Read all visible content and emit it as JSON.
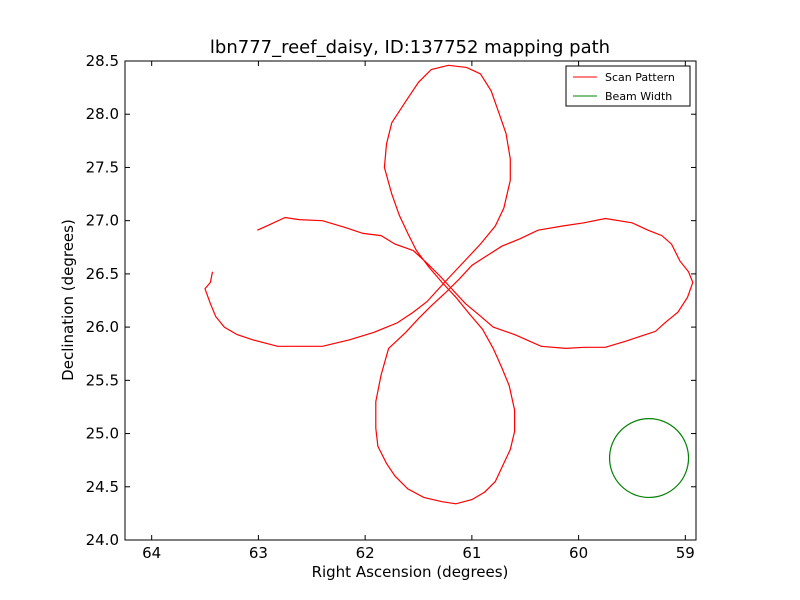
{
  "chart_data": {
    "type": "line",
    "title": "lbn777_reef_daisy, ID:137752 mapping path",
    "xlabel": "Right Ascension (degrees)",
    "ylabel": "Declination (degrees)",
    "xlim": [
      64.25,
      58.9
    ],
    "ylim": [
      24.0,
      28.5
    ],
    "x_inverted": true,
    "xticks": [
      64,
      63,
      62,
      61,
      60,
      59
    ],
    "xtick_labels": [
      "64",
      "63",
      "62",
      "61",
      "60",
      "59"
    ],
    "yticks": [
      24.0,
      24.5,
      25.0,
      25.5,
      26.0,
      26.5,
      27.0,
      27.5,
      28.0,
      28.5
    ],
    "ytick_labels": [
      "24.0",
      "24.5",
      "25.0",
      "25.5",
      "26.0",
      "26.5",
      "27.0",
      "27.5",
      "28.0",
      "28.5"
    ],
    "grid": false,
    "legend_position": "top-right",
    "series": [
      {
        "name": "Scan Pattern",
        "color": "#ff0000",
        "points": [
          [
            63.01,
            26.91
          ],
          [
            62.9,
            26.96
          ],
          [
            62.75,
            27.03
          ],
          [
            62.62,
            27.01
          ],
          [
            62.4,
            27.0
          ],
          [
            62.2,
            26.94
          ],
          [
            62.02,
            26.88
          ],
          [
            61.85,
            26.86
          ],
          [
            61.72,
            26.78
          ],
          [
            61.55,
            26.72
          ],
          [
            61.42,
            26.6
          ],
          [
            61.3,
            26.48
          ],
          [
            61.18,
            26.35
          ],
          [
            61.06,
            26.22
          ],
          [
            60.94,
            26.12
          ],
          [
            60.8,
            26.0
          ],
          [
            60.6,
            25.93
          ],
          [
            60.35,
            25.82
          ],
          [
            60.12,
            25.8
          ],
          [
            59.95,
            25.81
          ],
          [
            59.75,
            25.81
          ],
          [
            59.55,
            25.87
          ],
          [
            59.4,
            25.92
          ],
          [
            59.28,
            25.96
          ],
          [
            59.18,
            26.05
          ],
          [
            59.07,
            26.14
          ],
          [
            58.98,
            26.28
          ],
          [
            58.93,
            26.42
          ],
          [
            58.97,
            26.52
          ],
          [
            59.05,
            26.62
          ],
          [
            59.13,
            26.78
          ],
          [
            59.22,
            26.86
          ],
          [
            59.35,
            26.91
          ],
          [
            59.5,
            26.98
          ],
          [
            59.75,
            27.02
          ],
          [
            59.95,
            26.98
          ],
          [
            60.15,
            26.95
          ],
          [
            60.38,
            26.91
          ],
          [
            60.55,
            26.83
          ],
          [
            60.72,
            26.76
          ],
          [
            60.86,
            26.67
          ],
          [
            61.0,
            26.58
          ],
          [
            61.12,
            26.45
          ],
          [
            61.25,
            26.32
          ],
          [
            61.38,
            26.2
          ],
          [
            61.5,
            26.08
          ],
          [
            61.62,
            25.95
          ],
          [
            61.78,
            25.8
          ],
          [
            61.85,
            25.55
          ],
          [
            61.9,
            25.3
          ],
          [
            61.9,
            25.05
          ],
          [
            61.88,
            24.88
          ],
          [
            61.8,
            24.72
          ],
          [
            61.72,
            24.6
          ],
          [
            61.6,
            24.48
          ],
          [
            61.45,
            24.4
          ],
          [
            61.28,
            24.36
          ],
          [
            61.15,
            24.34
          ],
          [
            61.0,
            24.38
          ],
          [
            60.88,
            24.45
          ],
          [
            60.78,
            24.55
          ],
          [
            60.72,
            24.68
          ],
          [
            60.64,
            24.85
          ],
          [
            60.6,
            25.02
          ],
          [
            60.6,
            25.22
          ],
          [
            60.65,
            25.45
          ],
          [
            60.72,
            25.62
          ],
          [
            60.8,
            25.8
          ],
          [
            60.9,
            25.98
          ],
          [
            61.02,
            26.12
          ],
          [
            61.15,
            26.28
          ],
          [
            61.28,
            26.42
          ],
          [
            61.4,
            26.56
          ],
          [
            61.52,
            26.72
          ],
          [
            61.6,
            26.88
          ],
          [
            61.68,
            27.05
          ],
          [
            61.75,
            27.25
          ],
          [
            61.82,
            27.5
          ],
          [
            61.8,
            27.72
          ],
          [
            61.75,
            27.92
          ],
          [
            61.62,
            28.12
          ],
          [
            61.5,
            28.3
          ],
          [
            61.38,
            28.42
          ],
          [
            61.22,
            28.46
          ],
          [
            61.05,
            28.44
          ],
          [
            60.92,
            28.38
          ],
          [
            60.82,
            28.22
          ],
          [
            60.75,
            28.02
          ],
          [
            60.68,
            27.82
          ],
          [
            60.64,
            27.58
          ],
          [
            60.64,
            27.38
          ],
          [
            60.7,
            27.12
          ],
          [
            60.78,
            26.95
          ],
          [
            60.92,
            26.78
          ],
          [
            61.05,
            26.64
          ],
          [
            61.2,
            26.48
          ],
          [
            61.32,
            26.35
          ],
          [
            61.42,
            26.24
          ],
          [
            61.55,
            26.14
          ],
          [
            61.7,
            26.04
          ],
          [
            61.92,
            25.95
          ],
          [
            62.15,
            25.88
          ],
          [
            62.4,
            25.82
          ],
          [
            62.6,
            25.82
          ],
          [
            62.82,
            25.82
          ],
          [
            63.05,
            25.88
          ],
          [
            63.2,
            25.93
          ],
          [
            63.32,
            26.0
          ],
          [
            63.4,
            26.1
          ],
          [
            63.45,
            26.22
          ],
          [
            63.5,
            26.36
          ],
          [
            63.45,
            26.42
          ],
          [
            63.43,
            26.52
          ]
        ]
      },
      {
        "name": "Beam Width",
        "color": "#008000",
        "center": [
          59.34,
          24.77
        ],
        "radius": 0.37
      }
    ]
  }
}
